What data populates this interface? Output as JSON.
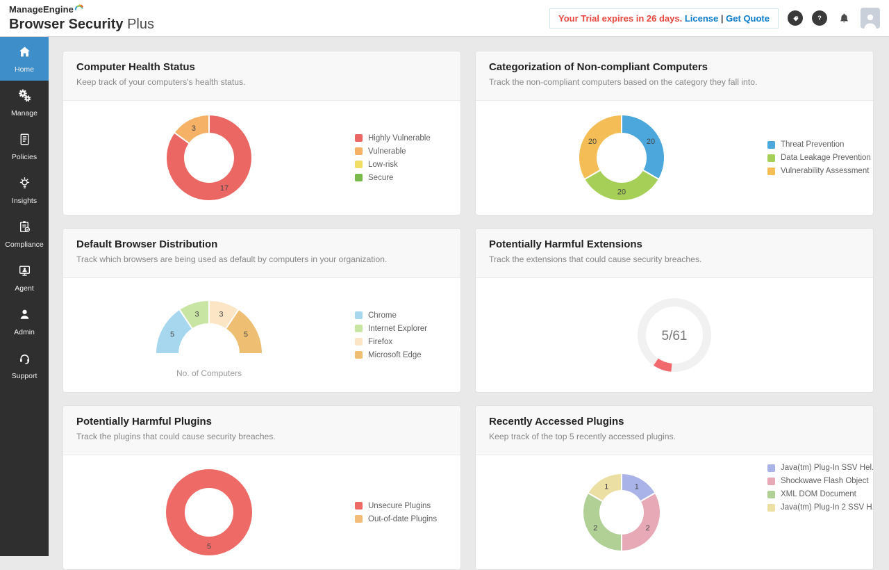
{
  "header": {
    "brand_top": "ManageEngine",
    "brand_main": "Browser Security",
    "brand_suffix": "Plus",
    "trial": {
      "message": "Your Trial expires in 26 days.",
      "license_label": "License",
      "divider": "|",
      "quote_label": "Get Quote"
    }
  },
  "sidebar": {
    "active_color": "#3d8ec9",
    "items": [
      {
        "label": "Home",
        "icon": "home-icon",
        "active": true
      },
      {
        "label": "Manage",
        "icon": "gears-icon",
        "active": false
      },
      {
        "label": "Policies",
        "icon": "policy-scroll-icon",
        "active": false
      },
      {
        "label": "Insights",
        "icon": "insights-bulb-icon",
        "active": false
      },
      {
        "label": "Compliance",
        "icon": "compliance-clipboard-icon",
        "active": false
      },
      {
        "label": "Agent",
        "icon": "agent-computer-icon",
        "active": false
      },
      {
        "label": "Admin",
        "icon": "admin-user-icon",
        "active": false
      },
      {
        "label": "Support",
        "icon": "support-headset-icon",
        "active": false
      }
    ]
  },
  "cards": [
    {
      "title": "Computer Health Status",
      "subtitle": "Keep track of your computers's health status."
    },
    {
      "title": "Categorization of Non-compliant Computers",
      "subtitle": "Track the non-compliant computers based on the category they fall into."
    },
    {
      "title": "Default Browser Distribution",
      "subtitle": "Track which browsers are being used as default by computers in your organization."
    },
    {
      "title": "Potentially Harmful Extensions",
      "subtitle": "Track the extensions that could cause security breaches."
    },
    {
      "title": "Potentially Harmful Plugins",
      "subtitle": "Track the plugins that could cause security breaches."
    },
    {
      "title": "Recently Accessed Plugins",
      "subtitle": "Keep track of the top 5 recently accessed plugins."
    }
  ],
  "chart_data": [
    {
      "type": "pie",
      "style": "donut",
      "title": "Computer Health Status",
      "categories": [
        "Highly Vulnerable",
        "Vulnerable",
        "Low-risk",
        "Secure"
      ],
      "values": [
        17,
        3,
        0,
        0
      ],
      "colors": [
        "#ea6764",
        "#f5b267",
        "#f2de62",
        "#7aba4d"
      ],
      "legend_position": "right",
      "labels_shown": true
    },
    {
      "type": "pie",
      "style": "donut",
      "title": "Categorization of Non-compliant Computers",
      "categories": [
        "Threat Prevention",
        "Data Leakage Prevention",
        "Vulnerability Assessment"
      ],
      "values": [
        20,
        20,
        20
      ],
      "colors": [
        "#4ba7dc",
        "#a5cf56",
        "#f5bd55"
      ],
      "legend_position": "right",
      "labels_shown": true
    },
    {
      "type": "pie",
      "style": "half-donut",
      "title": "Default Browser Distribution",
      "categories": [
        "Chrome",
        "Internet Explorer",
        "Firefox",
        "Microsoft Edge"
      ],
      "values": [
        5,
        3,
        3,
        5
      ],
      "colors": [
        "#a6d7ee",
        "#c9e5a4",
        "#fbe5c4",
        "#eebe72"
      ],
      "xlabel": "No. of Computers",
      "legend_position": "right",
      "labels_shown": true
    },
    {
      "type": "pie",
      "style": "gauge",
      "title": "Potentially Harmful Extensions",
      "value": 5,
      "total": 61,
      "center_text": "5/61",
      "color": "#f2696d",
      "track_color": "#f1f1f1"
    },
    {
      "type": "pie",
      "style": "donut",
      "title": "Potentially Harmful Plugins",
      "categories": [
        "Unsecure Plugins",
        "Out-of-date Plugins"
      ],
      "values": [
        5,
        0
      ],
      "colors": [
        "#ed6a66",
        "#f3bc79"
      ],
      "legend_position": "right",
      "labels_shown": true
    },
    {
      "type": "pie",
      "style": "donut",
      "title": "Recently Accessed Plugins",
      "categories": [
        "Java(tm) Plug-In SSV Hel...",
        "Shockwave Flash Object",
        "XML DOM Document",
        "Java(tm) Plug-In 2 SSV H..."
      ],
      "values": [
        1,
        2,
        2,
        1
      ],
      "colors": [
        "#a9b3e8",
        "#e8a9b6",
        "#b0d096",
        "#ebdfa4"
      ],
      "legend_position": "right",
      "labels_shown": true
    }
  ]
}
